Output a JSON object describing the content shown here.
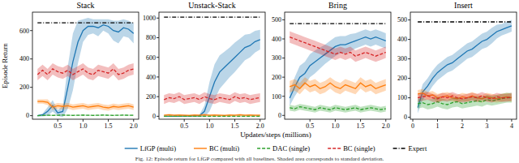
{
  "chart_data": [
    {
      "type": "line",
      "title": "Stack",
      "y_label": "Episode Return",
      "grid": false,
      "x": [
        0.1,
        0.2,
        0.3,
        0.4,
        0.5,
        0.6,
        0.7,
        0.8,
        0.9,
        1.0,
        1.1,
        1.2,
        1.3,
        1.4,
        1.5,
        1.6,
        1.7,
        1.8,
        1.9,
        2.0
      ],
      "xlim": [
        0.0,
        2.1
      ],
      "ylim": [
        -25,
        730
      ],
      "xticks": [
        {
          "value": 0.5,
          "label": "0.5"
        },
        {
          "value": 1.0,
          "label": "1.0"
        },
        {
          "value": 1.5,
          "label": "1.5"
        },
        {
          "value": 2.0,
          "label": "2.0"
        }
      ],
      "yticks": [
        0,
        200,
        400,
        600
      ],
      "series": [
        {
          "name": "LfGP (multi)",
          "color": "#1f77b4",
          "line_style": "solid",
          "values": [
            0,
            5,
            30,
            70,
            20,
            30,
            200,
            380,
            520,
            600,
            630,
            630,
            620,
            640,
            630,
            600,
            590,
            620,
            610,
            580
          ],
          "std": [
            5,
            10,
            30,
            40,
            20,
            40,
            150,
            200,
            150,
            80,
            60,
            50,
            60,
            40,
            50,
            70,
            80,
            60,
            60,
            70
          ]
        },
        {
          "name": "BC (multi)",
          "color": "#ff7f0e",
          "line_style": "solid",
          "values": [
            100,
            100,
            95,
            60,
            70,
            65,
            70,
            60,
            65,
            70,
            60,
            65,
            70,
            60,
            55,
            65,
            60,
            65,
            70,
            60
          ],
          "std": [
            15,
            15,
            20,
            20,
            20,
            20,
            20,
            20,
            20,
            20,
            20,
            20,
            20,
            20,
            20,
            20,
            20,
            20,
            20,
            20
          ]
        },
        {
          "name": "DAC (single)",
          "color": "#2ca02c",
          "line_style": "dashed",
          "values": [
            0,
            2,
            3,
            2,
            3,
            4,
            3,
            2,
            3,
            4,
            3,
            2,
            3,
            4,
            3,
            2,
            3,
            4,
            3,
            3
          ],
          "std": [
            3,
            4,
            4,
            4,
            4,
            4,
            4,
            4,
            4,
            4,
            4,
            4,
            4,
            4,
            4,
            4,
            4,
            4,
            4,
            4
          ]
        },
        {
          "name": "BC (single)",
          "color": "#d62728",
          "line_style": "dashed",
          "values": [
            290,
            320,
            290,
            330,
            310,
            300,
            320,
            290,
            310,
            330,
            300,
            290,
            320,
            310,
            300,
            330,
            290,
            300,
            320,
            330
          ],
          "std": [
            40,
            40,
            40,
            40,
            40,
            40,
            40,
            40,
            40,
            40,
            40,
            40,
            40,
            40,
            40,
            40,
            40,
            40,
            40,
            40
          ]
        },
        {
          "name": "Expert",
          "color": "#000000",
          "line_style": "dashdot",
          "values": [
            655,
            655,
            655,
            655,
            655,
            655,
            655,
            655,
            655,
            655,
            655,
            655,
            655,
            655,
            655,
            655,
            655,
            655,
            655,
            655
          ]
        }
      ]
    },
    {
      "type": "line",
      "title": "Unstack-Stack",
      "grid": false,
      "x": [
        0.1,
        0.2,
        0.3,
        0.4,
        0.5,
        0.6,
        0.7,
        0.8,
        0.9,
        1.0,
        1.1,
        1.2,
        1.3,
        1.4,
        1.5,
        1.6,
        1.7,
        1.8,
        1.9,
        2.0
      ],
      "xlim": [
        0.0,
        2.1
      ],
      "ylim": [
        -30,
        1060
      ],
      "xticks": [
        {
          "value": 0.5,
          "label": "0.5"
        },
        {
          "value": 1.0,
          "label": "1.0"
        },
        {
          "value": 1.5,
          "label": "1.5"
        },
        {
          "value": 2.0,
          "label": "2.0"
        }
      ],
      "yticks": [
        0,
        200,
        400,
        600,
        800,
        1000
      ],
      "series": [
        {
          "name": "LfGP (multi)",
          "color": "#1f77b4",
          "line_style": "solid",
          "values": [
            0,
            0,
            0,
            0,
            2,
            3,
            4,
            5,
            50,
            200,
            350,
            450,
            500,
            550,
            600,
            650,
            700,
            720,
            760,
            780
          ],
          "std": [
            2,
            2,
            2,
            2,
            4,
            5,
            6,
            10,
            60,
            150,
            180,
            170,
            160,
            150,
            150,
            140,
            130,
            120,
            110,
            100
          ]
        },
        {
          "name": "BC (multi)",
          "color": "#ff7f0e",
          "line_style": "solid",
          "values": [
            10,
            15,
            10,
            12,
            10,
            8,
            12,
            10,
            15,
            10,
            12,
            10,
            8,
            12,
            10,
            15,
            10,
            12,
            10,
            10
          ],
          "std": [
            10,
            10,
            10,
            10,
            10,
            10,
            10,
            10,
            10,
            10,
            10,
            10,
            10,
            10,
            10,
            10,
            10,
            10,
            10,
            10
          ]
        },
        {
          "name": "DAC (single)",
          "color": "#2ca02c",
          "line_style": "dashed",
          "values": [
            0,
            0,
            0,
            0,
            0,
            0,
            0,
            0,
            0,
            0,
            0,
            0,
            0,
            0,
            0,
            0,
            0,
            0,
            0,
            0
          ],
          "std": [
            3,
            3,
            3,
            3,
            3,
            3,
            3,
            3,
            3,
            3,
            3,
            3,
            3,
            3,
            3,
            3,
            3,
            3,
            3,
            3
          ]
        },
        {
          "name": "BC (single)",
          "color": "#d62728",
          "line_style": "dashed",
          "values": [
            170,
            190,
            180,
            200,
            170,
            180,
            190,
            170,
            200,
            180,
            170,
            190,
            180,
            170,
            200,
            180,
            190,
            170,
            180,
            190
          ],
          "std": [
            45,
            45,
            45,
            45,
            45,
            45,
            45,
            45,
            45,
            45,
            45,
            45,
            45,
            45,
            45,
            45,
            45,
            45,
            45,
            45
          ]
        },
        {
          "name": "Expert",
          "color": "#000000",
          "line_style": "dashdot",
          "values": [
            1010,
            1010,
            1010,
            1010,
            1010,
            1010,
            1010,
            1010,
            1010,
            1010,
            1010,
            1010,
            1010,
            1010,
            1010,
            1010,
            1010,
            1010,
            1010,
            1010
          ]
        }
      ]
    },
    {
      "type": "line",
      "title": "Bring",
      "grid": false,
      "x": [
        0.1,
        0.2,
        0.3,
        0.4,
        0.5,
        0.6,
        0.7,
        0.8,
        0.9,
        1.0,
        1.1,
        1.2,
        1.3,
        1.4,
        1.5,
        1.6,
        1.7,
        1.8,
        1.9,
        2.0
      ],
      "xlim": [
        0.0,
        2.1
      ],
      "ylim": [
        -20,
        540
      ],
      "xticks": [
        {
          "value": 0.5,
          "label": "0.5"
        },
        {
          "value": 1.0,
          "label": "1.0"
        },
        {
          "value": 1.5,
          "label": "1.5"
        },
        {
          "value": 2.0,
          "label": "2.0"
        }
      ],
      "yticks": [
        0,
        100,
        200,
        300,
        400,
        500
      ],
      "series": [
        {
          "name": "LfGP (multi)",
          "color": "#1f77b4",
          "line_style": "solid",
          "values": [
            90,
            150,
            200,
            220,
            260,
            280,
            300,
            320,
            340,
            360,
            370,
            370,
            380,
            390,
            400,
            410,
            400,
            410,
            400,
            390
          ],
          "std": [
            40,
            50,
            60,
            60,
            60,
            60,
            55,
            50,
            50,
            50,
            45,
            45,
            45,
            40,
            40,
            40,
            40,
            40,
            40,
            40
          ]
        },
        {
          "name": "BC (multi)",
          "color": "#ff7f0e",
          "line_style": "solid",
          "values": [
            150,
            160,
            140,
            170,
            150,
            160,
            140,
            150,
            170,
            150,
            140,
            160,
            150,
            140,
            170,
            150,
            160,
            140,
            150,
            160
          ],
          "std": [
            30,
            30,
            30,
            30,
            30,
            30,
            30,
            30,
            30,
            30,
            30,
            30,
            30,
            30,
            30,
            30,
            30,
            30,
            30,
            30
          ]
        },
        {
          "name": "DAC (single)",
          "color": "#2ca02c",
          "line_style": "dashed",
          "values": [
            40,
            35,
            45,
            40,
            35,
            30,
            40,
            35,
            30,
            40,
            35,
            30,
            35,
            40,
            30,
            35,
            40,
            35,
            30,
            35
          ],
          "std": [
            15,
            15,
            15,
            15,
            15,
            15,
            15,
            15,
            15,
            15,
            15,
            15,
            15,
            15,
            15,
            15,
            15,
            15,
            15,
            15
          ]
        },
        {
          "name": "BC (single)",
          "color": "#d62728",
          "line_style": "dashed",
          "values": [
            410,
            400,
            390,
            380,
            370,
            360,
            350,
            340,
            330,
            320,
            330,
            320,
            330,
            310,
            320,
            330,
            320,
            310,
            320,
            330
          ],
          "std": [
            30,
            30,
            30,
            30,
            30,
            30,
            30,
            30,
            30,
            30,
            30,
            30,
            30,
            30,
            30,
            30,
            30,
            30,
            30,
            30
          ]
        },
        {
          "name": "Expert",
          "color": "#000000",
          "line_style": "dashdot",
          "values": [
            480,
            480,
            480,
            480,
            480,
            480,
            480,
            480,
            480,
            480,
            480,
            480,
            480,
            480,
            480,
            480,
            480,
            480,
            480,
            480
          ]
        }
      ]
    },
    {
      "type": "line",
      "title": "Insert",
      "grid": false,
      "x": [
        0.2,
        0.4,
        0.6,
        0.8,
        1.0,
        1.2,
        1.4,
        1.6,
        1.8,
        2.0,
        2.2,
        2.4,
        2.6,
        2.8,
        3.0,
        3.2,
        3.4,
        3.6,
        3.8,
        4.0
      ],
      "xlim": [
        -0.1,
        4.2
      ],
      "ylim": [
        -10,
        540
      ],
      "xticks": [
        0,
        1,
        2,
        3,
        4
      ],
      "yticks": [
        0,
        100,
        200,
        300,
        400,
        500
      ],
      "series": [
        {
          "name": "LfGP (multi)",
          "color": "#1f77b4",
          "line_style": "solid",
          "values": [
            50,
            130,
            160,
            200,
            230,
            250,
            270,
            280,
            300,
            320,
            340,
            350,
            370,
            390,
            400,
            420,
            440,
            450,
            460,
            470
          ],
          "std": [
            30,
            40,
            40,
            40,
            40,
            40,
            40,
            40,
            40,
            40,
            40,
            40,
            40,
            40,
            40,
            40,
            35,
            30,
            30,
            30
          ]
        },
        {
          "name": "BC (multi)",
          "color": "#ff7f0e",
          "line_style": "solid",
          "values": [
            120,
            125,
            110,
            115,
            100,
            105,
            110,
            100,
            95,
            105,
            100,
            110,
            100,
            95,
            105,
            100,
            95,
            100,
            105,
            100
          ],
          "std": [
            20,
            20,
            20,
            20,
            20,
            20,
            20,
            20,
            20,
            20,
            20,
            20,
            20,
            20,
            20,
            20,
            20,
            20,
            20,
            20
          ]
        },
        {
          "name": "DAC (single)",
          "color": "#2ca02c",
          "line_style": "dashed",
          "values": [
            70,
            75,
            65,
            70,
            80,
            70,
            65,
            75,
            80,
            70,
            75,
            80,
            85,
            80,
            90,
            85,
            90,
            95,
            100,
            100
          ],
          "std": [
            25,
            25,
            25,
            25,
            25,
            25,
            25,
            25,
            25,
            25,
            25,
            25,
            25,
            25,
            25,
            25,
            25,
            25,
            25,
            25
          ]
        },
        {
          "name": "BC (single)",
          "color": "#d62728",
          "line_style": "dashed",
          "values": [
            100,
            105,
            110,
            100,
            95,
            105,
            100,
            110,
            100,
            95,
            100,
            105,
            100,
            110,
            100,
            95,
            105,
            100,
            100,
            105
          ],
          "std": [
            20,
            20,
            20,
            20,
            20,
            20,
            20,
            20,
            20,
            20,
            20,
            20,
            20,
            20,
            20,
            20,
            20,
            20,
            20,
            20
          ]
        },
        {
          "name": "Expert",
          "color": "#000000",
          "line_style": "dashdot",
          "values": [
            490,
            490,
            490,
            490,
            490,
            490,
            490,
            490,
            490,
            490,
            490,
            490,
            490,
            490,
            490,
            490,
            490,
            490,
            490,
            490
          ]
        }
      ]
    }
  ],
  "x_label": "Updates/steps (millions)",
  "caption": "Fig. 12: Episode return for LfGP compared with all baselines. Shaded area corresponds to standard deviation."
}
